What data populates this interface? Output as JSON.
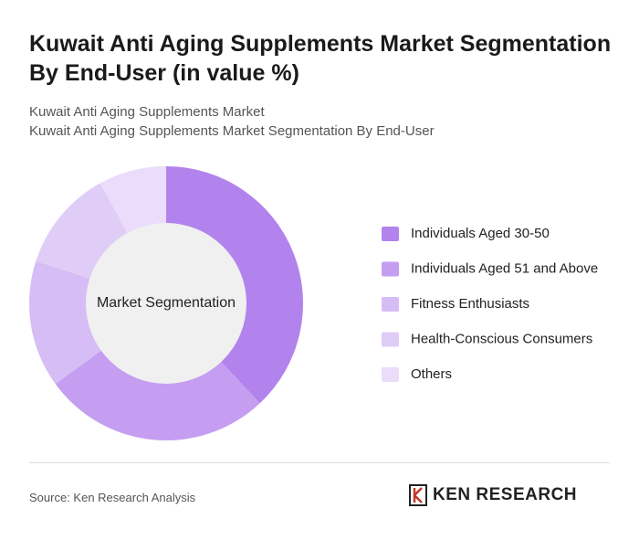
{
  "chart_data": {
    "type": "pie",
    "title": "Kuwait Anti Aging Supplements Market Segmentation By End-User (in value %)",
    "subtitle": [
      "Kuwait Anti Aging Supplements Market",
      "Kuwait Anti Aging Supplements Market Segmentation By End-User"
    ],
    "center_label": "Market Segmentation",
    "categories": [
      "Individuals Aged 30-50",
      "Individuals Aged 51 and Above",
      "Fitness Enthusiasts",
      "Health-Conscious Consumers",
      "Others"
    ],
    "values": [
      38,
      27,
      15,
      12,
      8
    ],
    "colors": [
      "#b283ec",
      "#c59ef1",
      "#d6bdf5",
      "#e0cdf7",
      "#eadcfa"
    ]
  },
  "source": "Source: Ken Research Analysis",
  "brand": "KEN RESEARCH"
}
